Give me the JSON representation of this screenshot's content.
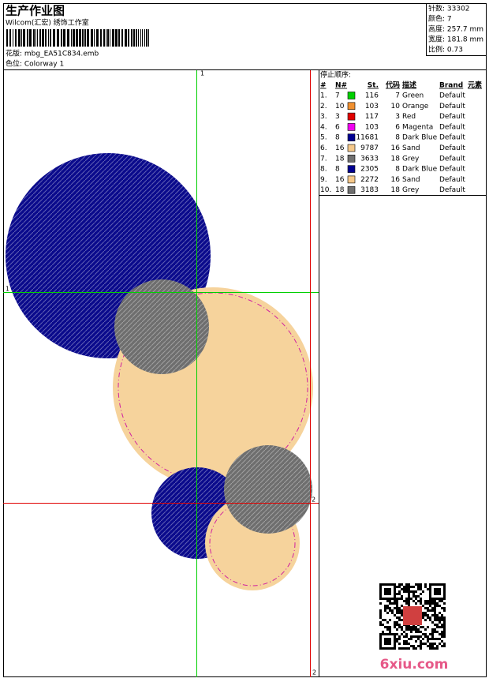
{
  "header": {
    "title": "生产作业图",
    "studio": "Wilcom(汇宏) 绣饰工作室",
    "design": "花版: mbg_EA51C834.emb",
    "colorway": "色位: Colorway 1"
  },
  "info": [
    "针数: 33302",
    "颜色: 7",
    "高度: 257.7 mm",
    "宽度: 181.8 mm",
    "比例: 0.73"
  ],
  "stop_sequence": {
    "title": "停止顺序:",
    "columns": [
      "#",
      "N#",
      "St.",
      "代码",
      "描述",
      "Brand",
      "元素"
    ],
    "rows": [
      [
        "1.",
        "7",
        "116",
        "7",
        "Green",
        "Default"
      ],
      [
        "2.",
        "10",
        "103",
        "10",
        "Orange",
        "Default"
      ],
      [
        "3.",
        "3",
        "117",
        "3",
        "Red",
        "Default"
      ],
      [
        "4.",
        "6",
        "103",
        "6",
        "Magenta",
        "Default"
      ],
      [
        "5.",
        "8",
        "11681",
        "8",
        "Dark Blue",
        "Default"
      ],
      [
        "6.",
        "16",
        "9787",
        "16",
        "Sand",
        "Default"
      ],
      [
        "7.",
        "18",
        "3633",
        "18",
        "Grey",
        "Default"
      ],
      [
        "8.",
        "8",
        "2305",
        "8",
        "Dark Blue",
        "Default"
      ],
      [
        "9.",
        "16",
        "2272",
        "16",
        "Sand",
        "Default"
      ],
      [
        "10.",
        "18",
        "3183",
        "18",
        "Grey",
        "Default"
      ]
    ],
    "swatches": [
      "#00d000",
      "#f09030",
      "#e00000",
      "#f000f0",
      "#000090",
      "#f5c88a",
      "#707070",
      "#000090",
      "#f5c88a",
      "#707070"
    ]
  },
  "guides": {
    "top": "1",
    "left": "1",
    "right": "2",
    "bottom": "2"
  },
  "watermark": "6xiu.com"
}
